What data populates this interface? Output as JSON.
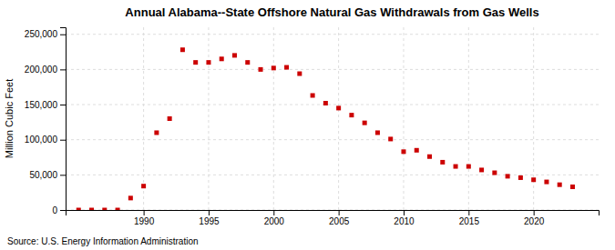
{
  "chart_data": {
    "type": "scatter",
    "title": "Annual Alabama--State Offshore Natural Gas Withdrawals from Gas Wells",
    "ylabel": "Million Cubic Feet",
    "annotations": [
      "Source: U.S. Energy Information Administration"
    ],
    "x": [
      1985,
      1986,
      1987,
      1988,
      1989,
      1990,
      1991,
      1992,
      1993,
      1994,
      1995,
      1996,
      1997,
      1998,
      1999,
      2000,
      2001,
      2002,
      2003,
      2004,
      2005,
      2006,
      2007,
      2008,
      2009,
      2010,
      2011,
      2012,
      2013,
      2014,
      2015,
      2016,
      2017,
      2018,
      2019,
      2020,
      2021,
      2022,
      2023
    ],
    "values": [
      0,
      0,
      0,
      0,
      17000,
      34000,
      110000,
      130000,
      228000,
      210000,
      210000,
      215000,
      220000,
      210000,
      200000,
      202000,
      203000,
      194000,
      163000,
      152000,
      145000,
      135000,
      124000,
      110000,
      101000,
      83000,
      85000,
      76000,
      68000,
      62000,
      62000,
      57000,
      53000,
      48000,
      46000,
      43000,
      40000,
      36000,
      33000
    ],
    "color": "#cc0000",
    "marker": "square",
    "xlim": [
      1984,
      2025
    ],
    "xticks": [
      1990,
      1995,
      2000,
      2005,
      2010,
      2015,
      2020
    ],
    "ylim": [
      0,
      260000
    ],
    "yticks": [
      0,
      {
        "value": 50000,
        "label": "50,000"
      },
      {
        "value": 100000,
        "label": "100,000"
      },
      {
        "value": 150000,
        "label": "150,000"
      },
      {
        "value": 200000,
        "label": "200,000"
      },
      {
        "value": 250000,
        "label": "250,000"
      }
    ],
    "grid": true
  }
}
